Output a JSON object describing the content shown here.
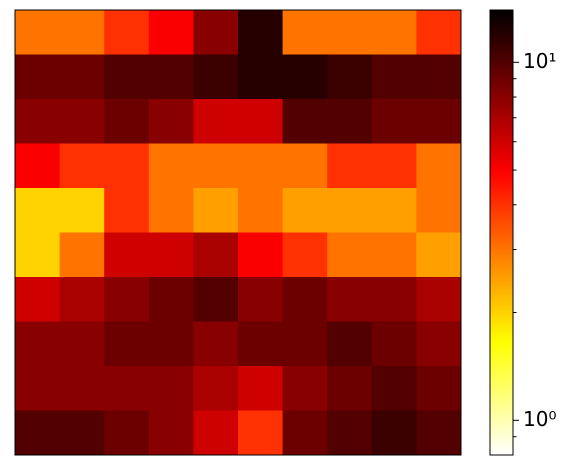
{
  "chart_data": {
    "type": "heatmap",
    "colormap": "hot_r",
    "log_scale": true,
    "z": [
      [
        3,
        3,
        4,
        5,
        8,
        12,
        3,
        3,
        3,
        4
      ],
      [
        9,
        9,
        10,
        10,
        11,
        12,
        12,
        11,
        10,
        10
      ],
      [
        8,
        8,
        9,
        8,
        6,
        6,
        10,
        10,
        9,
        9
      ],
      [
        5,
        4,
        4,
        3,
        3,
        3,
        3,
        4,
        4,
        3
      ],
      [
        2,
        2,
        4,
        3,
        2.5,
        3,
        2.5,
        2.5,
        2.5,
        3
      ],
      [
        2,
        3,
        6,
        6,
        7,
        5,
        4,
        3,
        3,
        2.5
      ],
      [
        6,
        7,
        8,
        9,
        10,
        8,
        9,
        8,
        8,
        7
      ],
      [
        8,
        8,
        9,
        9,
        8,
        9,
        9,
        10,
        9,
        8
      ],
      [
        8,
        8,
        8,
        8,
        7,
        6,
        8,
        9,
        10,
        9
      ],
      [
        10,
        10,
        9,
        8,
        6,
        4,
        9,
        10,
        11,
        10
      ]
    ],
    "clim": [
      0.8,
      14
    ],
    "colorbar_ticks": [
      {
        "value": 1,
        "label": "10⁰"
      },
      {
        "value": 10,
        "label": "10¹"
      }
    ],
    "colorbar_minor_ticks": [
      0.9,
      2,
      3,
      4,
      5,
      6,
      7,
      8,
      9
    ]
  }
}
